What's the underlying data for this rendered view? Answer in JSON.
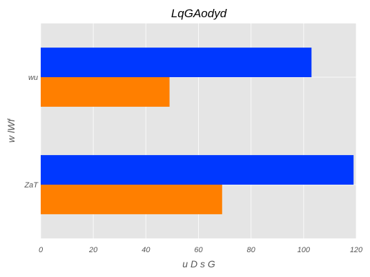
{
  "chart_data": {
    "type": "bar",
    "orientation": "horizontal",
    "title": "LqGAodyd",
    "xlabel": "u D  s G",
    "ylabel": "w lWf",
    "categories": [
      "ZaT",
      "wu"
    ],
    "series": [
      {
        "color": "#ff7f00",
        "values": [
          69,
          49
        ]
      },
      {
        "color": "#0038ff",
        "values": [
          119,
          103
        ]
      }
    ],
    "xlim": [
      0,
      120
    ],
    "xticks": [
      "0",
      "20",
      "40",
      "60",
      "80",
      "100",
      "120"
    ],
    "grid": true,
    "background": "#e5e5e5"
  }
}
